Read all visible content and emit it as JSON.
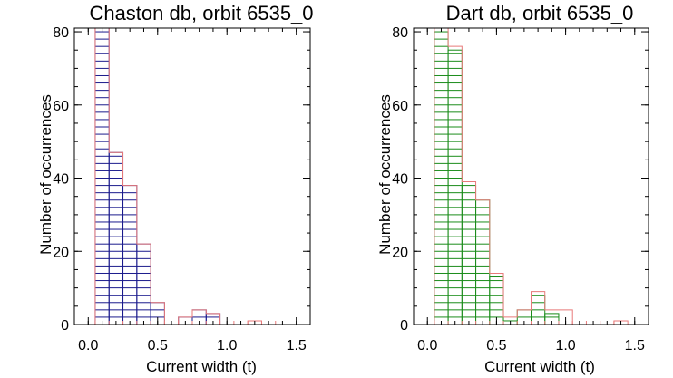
{
  "chart_data": [
    {
      "type": "bar",
      "title": "Chaston db, orbit 6535_0",
      "xlabel": "Current width (t)",
      "ylabel": "Number of occurrences",
      "xlim": [
        -0.1,
        1.6
      ],
      "ylim": [
        0,
        81
      ],
      "x_ticks": [
        0.0,
        0.5,
        1.0,
        1.5
      ],
      "x_tick_labels": [
        "0.0",
        "0.5",
        "1.0",
        "1.5"
      ],
      "y_ticks": [
        0,
        20,
        40,
        60,
        80
      ],
      "y_tick_labels": [
        "0",
        "20",
        "40",
        "60",
        "80"
      ],
      "bin_width": 0.1,
      "bin_starts": [
        0.05,
        0.15,
        0.25,
        0.35,
        0.45,
        0.55,
        0.65,
        0.75,
        0.85,
        0.95,
        1.05,
        1.15,
        1.25,
        1.35
      ],
      "series": [
        {
          "values": [
            81,
            47,
            38,
            22,
            6,
            0,
            2,
            4,
            3,
            0,
            0,
            0,
            0,
            0
          ],
          "fill_color": "#1a1a8c"
        },
        {
          "values": [
            81,
            47,
            38,
            22,
            6,
            0,
            2,
            4,
            3,
            0,
            0,
            1,
            0,
            0
          ],
          "outline_color": "#e87a7a"
        }
      ]
    },
    {
      "type": "bar",
      "title": "Dart db, orbit 6535_0",
      "xlabel": "Current width (t)",
      "ylabel": "Number of occurrences",
      "xlim": [
        -0.1,
        1.6
      ],
      "ylim": [
        0,
        81
      ],
      "x_ticks": [
        0.0,
        0.5,
        1.0,
        1.5
      ],
      "x_tick_labels": [
        "0.0",
        "0.5",
        "1.0",
        "1.5"
      ],
      "y_ticks": [
        0,
        20,
        40,
        60,
        80
      ],
      "y_tick_labels": [
        "0",
        "20",
        "40",
        "60",
        "80"
      ],
      "bin_width": 0.1,
      "bin_starts": [
        0.05,
        0.15,
        0.25,
        0.35,
        0.45,
        0.55,
        0.65,
        0.75,
        0.85,
        0.95,
        1.05,
        1.15,
        1.25,
        1.35
      ],
      "series": [
        {
          "values": [
            80,
            75,
            38,
            34,
            13,
            1,
            4,
            8,
            3,
            0,
            0,
            0,
            0,
            0
          ],
          "fill_color": "#1a8c1a"
        },
        {
          "values": [
            81,
            76,
            39,
            34,
            14,
            2,
            4,
            9,
            4,
            4,
            0,
            0,
            0,
            1
          ],
          "outline_color": "#e87a7a"
        }
      ]
    }
  ]
}
